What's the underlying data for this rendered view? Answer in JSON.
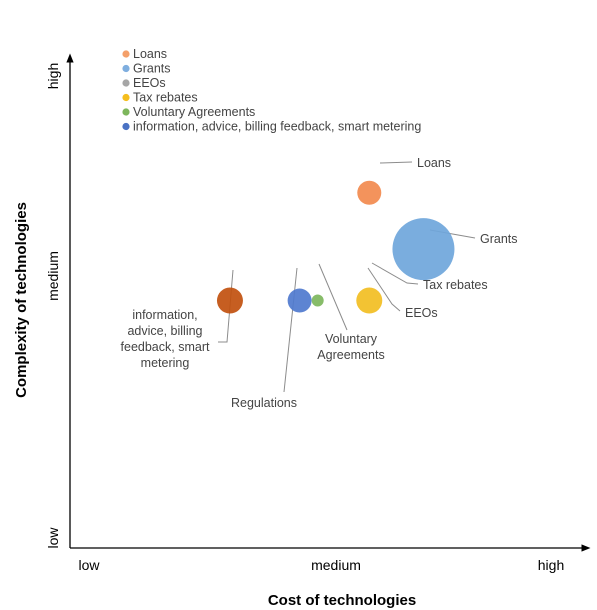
{
  "chart_data": {
    "type": "bubble",
    "xlabel": "Cost of technologies",
    "ylabel": "Complexity of technologies",
    "x_ticks": [
      "low",
      "medium",
      "high"
    ],
    "y_ticks": [
      "low",
      "medium",
      "high"
    ],
    "xlim": [
      0,
      2
    ],
    "ylim": [
      0,
      2
    ],
    "grid": false,
    "legend_placement": "top-left",
    "legend": [
      {
        "label": "Loans",
        "color": "#F4A06A"
      },
      {
        "label": "Grants",
        "color": "#7FAEDF"
      },
      {
        "label": "EEOs",
        "color": "#A6A6A6"
      },
      {
        "label": "Tax rebates",
        "color": "#F5BE1E"
      },
      {
        "label": "Voluntary Agreements",
        "color": "#7DB65C"
      },
      {
        "label": "information, advice, billing feedback, smart metering",
        "color": "#4A72C4"
      }
    ],
    "points": [
      {
        "name": "Loans",
        "label_lines": [
          "Loans"
        ],
        "x": 1.16,
        "y": 1.45,
        "size": 12,
        "color": "#F28A4E"
      },
      {
        "name": "Grants",
        "label_lines": [
          "Grants"
        ],
        "x": 1.37,
        "y": 1.22,
        "size": 31,
        "color": "#6FA6DB"
      },
      {
        "name": "Tax rebates",
        "label_lines": [
          "Tax rebates"
        ],
        "x": 1.16,
        "y": 1.01,
        "size": 13,
        "color": "#F2BE22"
      },
      {
        "name": "EEOs",
        "label_lines": [
          "EEOs"
        ],
        "x": 1.16,
        "y": 1.01,
        "size": 0,
        "color": "#A6A6A6"
      },
      {
        "name": "Voluntary Agreements",
        "label_lines": [
          "Voluntary",
          "Agreements"
        ],
        "x": 0.96,
        "y": 1.01,
        "size": 6,
        "color": "#7DB65C"
      },
      {
        "name": "Regulations",
        "label_lines": [
          "Regulations"
        ],
        "x": 0.89,
        "y": 1.01,
        "size": 12,
        "color": "#4F79CE"
      },
      {
        "name": "information, advice, billing feedback, smart metering",
        "label_lines": [
          "information,",
          "advice, billing",
          "feedback, smart",
          "metering"
        ],
        "x": 0.62,
        "y": 1.01,
        "size": 13,
        "color": "#C1500E"
      }
    ]
  }
}
